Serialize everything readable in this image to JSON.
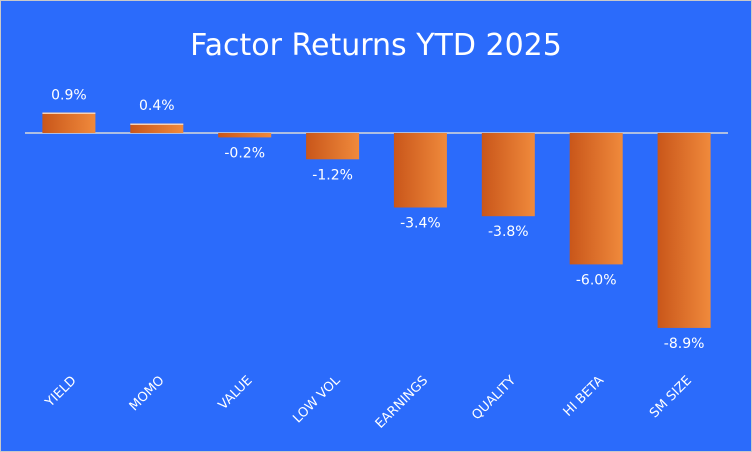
{
  "chart_data": {
    "type": "bar",
    "title": "Factor Returns YTD 2025",
    "categories": [
      "YIELD",
      "MOMO",
      "VALUE",
      "LOW VOL",
      "EARNINGS",
      "QUALITY",
      "HI BETA",
      "SM SIZE"
    ],
    "values": [
      0.9,
      0.4,
      -0.2,
      -1.2,
      -3.4,
      -3.8,
      -6.0,
      -8.9
    ],
    "data_labels": [
      "0.9%",
      "0.4%",
      "-0.2%",
      "-1.2%",
      "-3.4%",
      "-3.8%",
      "-6.0%",
      "-8.9%"
    ],
    "value_unit": "%",
    "xlabel": "",
    "ylabel": "",
    "grid": false,
    "legend": "none",
    "colors": {
      "background": "#2B6BFB",
      "bar_dark": "#C9561A",
      "bar_light": "#F08A3C",
      "text": "#FFFFFF",
      "axis": "#D9D9D9"
    }
  }
}
